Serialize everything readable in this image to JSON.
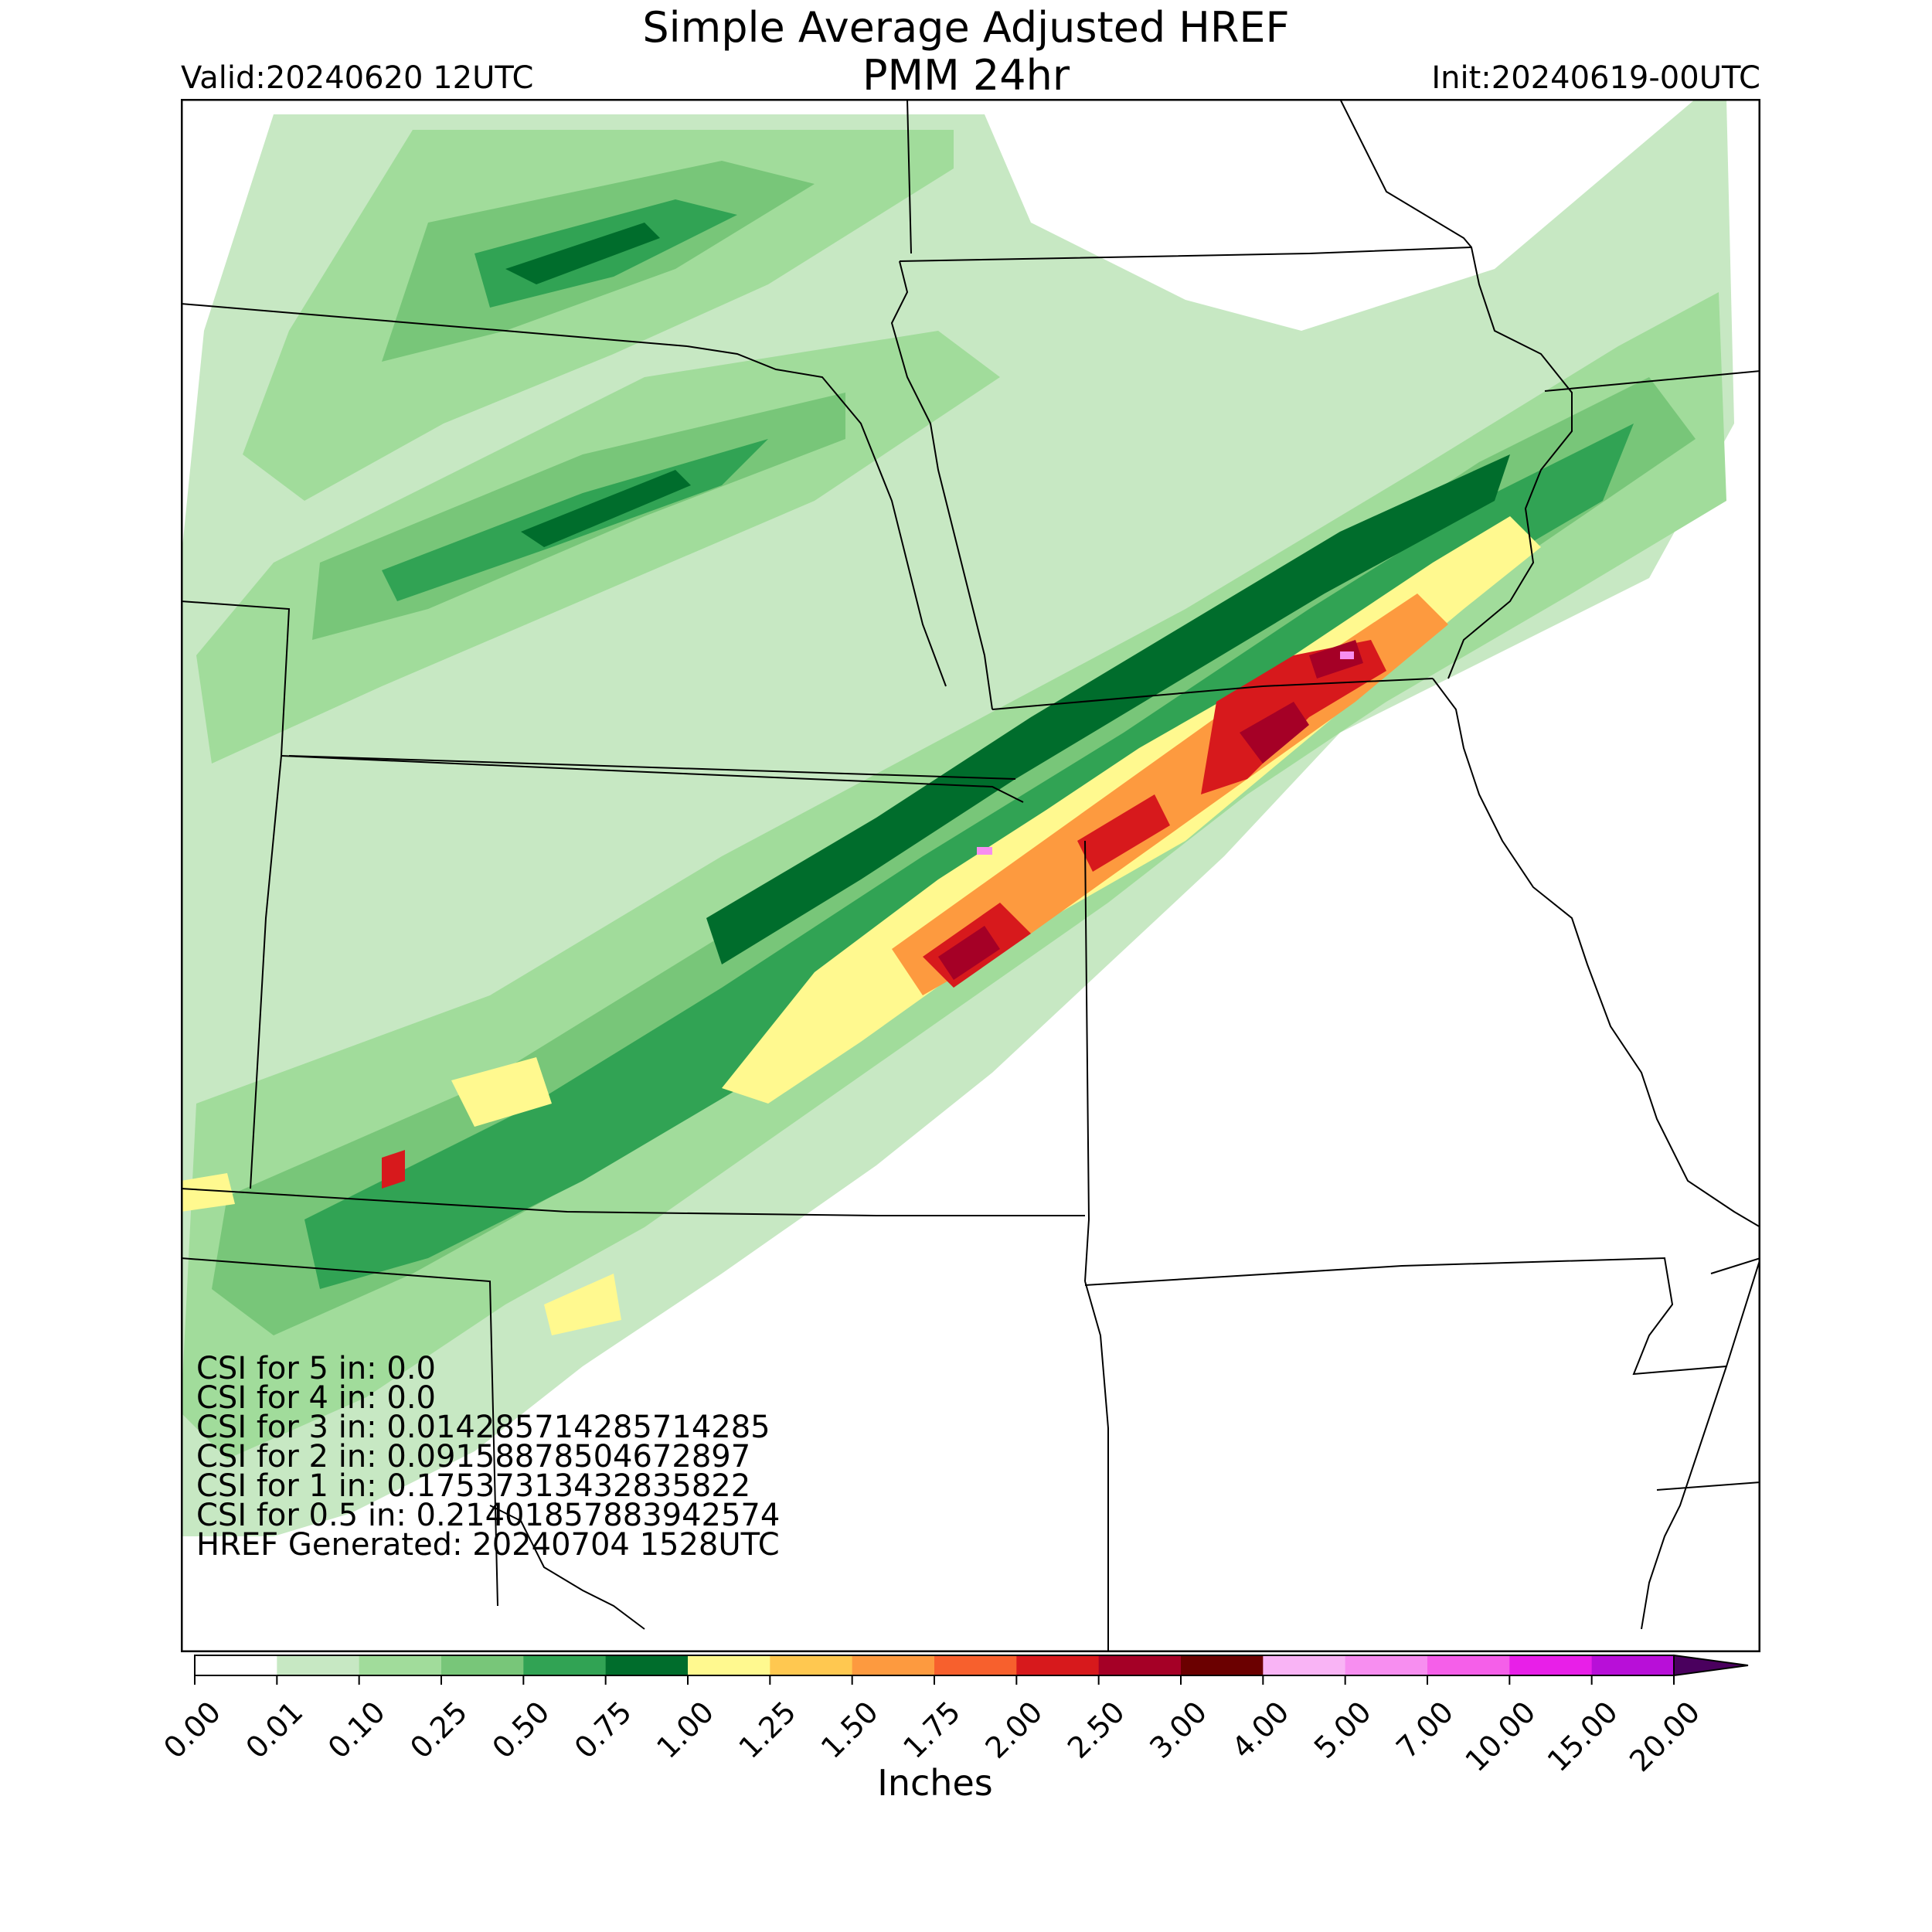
{
  "header": {
    "title_line1": "Simple Average Adjusted HREF",
    "title_line2": "PMM 24hr",
    "valid": "Valid:20240620 12UTC",
    "init": "Init:20240619-00UTC"
  },
  "stats": [
    "CSI for 5 in: 0.0",
    "CSI for 4 in: 0.0",
    "CSI for 3 in: 0.014285714285714285",
    "CSI for 2 in: 0.09158878504672897",
    "CSI for 1 in: 0.17537313432835822",
    "CSI for 0.5 in: 0.21401857883942574",
    "HREF Generated: 20240704 1528UTC"
  ],
  "colorbar": {
    "label": "Inches",
    "ticks": [
      "0.00",
      "0.01",
      "0.10",
      "0.25",
      "0.50",
      "0.75",
      "1.00",
      "1.25",
      "1.50",
      "1.75",
      "2.00",
      "2.50",
      "3.00",
      "4.00",
      "5.00",
      "7.00",
      "10.00",
      "15.00",
      "20.00"
    ],
    "colors": [
      "#ffffff",
      "#c7e8c3",
      "#a1dc9b",
      "#78c679",
      "#31a354",
      "#006d2c",
      "#fff98f",
      "#ffc850",
      "#fd9a3f",
      "#f7602d",
      "#d7191c",
      "#a50026",
      "#6b0000",
      "#f9b4f5",
      "#f78ef0",
      "#f55fe9",
      "#e81fe8",
      "#b80fd8",
      "#7c04b3"
    ],
    "extend_color": "#4a005e"
  },
  "map": {
    "colors": {
      "border": "#000000",
      "very_light": "#c7e8c3",
      "light": "#a1dc9b",
      "medium": "#78c679",
      "green": "#31a354",
      "dark_green": "#006d2c",
      "yellow": "#fff98f",
      "orange": "#fd9a3f",
      "red": "#d7191c",
      "dark_red": "#a50026",
      "pink": "#f78ef0"
    }
  }
}
